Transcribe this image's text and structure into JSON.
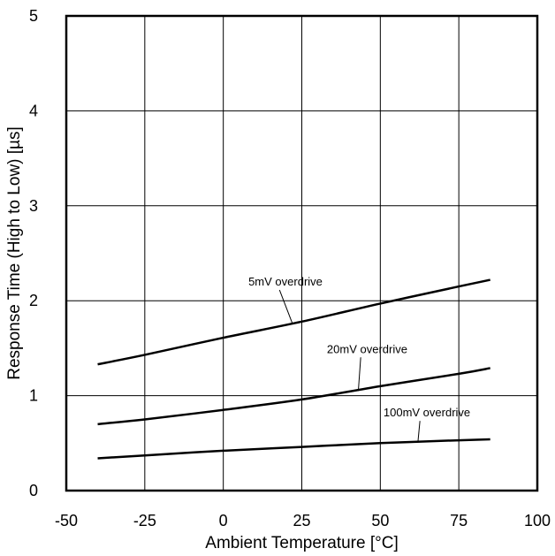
{
  "chart_data": {
    "type": "line",
    "title": "",
    "xlabel": "Ambient Temperature [°C]",
    "ylabel": "Response Time (High to Low) [µs]",
    "xlim": [
      -50,
      100
    ],
    "ylim": [
      0,
      5
    ],
    "xticks": [
      "-50",
      "-25",
      "0",
      "25",
      "50",
      "75",
      "100"
    ],
    "yticks": [
      "0",
      "1",
      "2",
      "3",
      "4",
      "5"
    ],
    "grid": true,
    "legend": "none",
    "series": [
      {
        "name": "5mV overdrive",
        "x": [
          -40,
          -25,
          0,
          25,
          50,
          75,
          85
        ],
        "y": [
          1.33,
          1.43,
          1.61,
          1.78,
          1.97,
          2.15,
          2.22
        ]
      },
      {
        "name": "20mV overdrive",
        "x": [
          -40,
          -25,
          0,
          25,
          50,
          75,
          85
        ],
        "y": [
          0.7,
          0.75,
          0.85,
          0.96,
          1.1,
          1.23,
          1.29
        ]
      },
      {
        "name": "100mV overdrive",
        "x": [
          -40,
          -25,
          0,
          25,
          50,
          75,
          85
        ],
        "y": [
          0.34,
          0.37,
          0.42,
          0.46,
          0.5,
          0.53,
          0.54
        ]
      }
    ],
    "annotations": [
      {
        "text": "5mV overdrive",
        "x": 8,
        "y": 2.16,
        "pointer_x": 22,
        "pointer_y": 1.76
      },
      {
        "text": "20mV overdrive",
        "x": 33,
        "y": 1.45,
        "pointer_x": 43,
        "pointer_y": 1.05
      },
      {
        "text": "100mV overdrive",
        "x": 51,
        "y": 0.78,
        "pointer_x": 62,
        "pointer_y": 0.52
      }
    ]
  }
}
